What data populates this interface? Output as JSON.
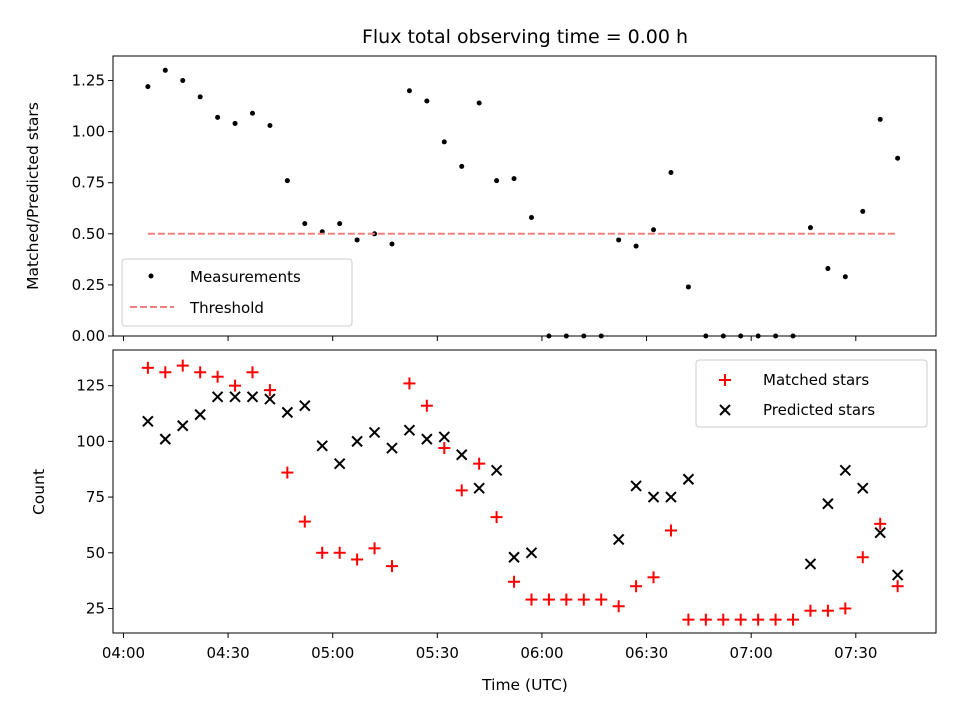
{
  "chart_data": [
    {
      "type": "scatter",
      "title": "Flux total observing time = 0.00 h",
      "xlabel": "",
      "ylabel": "Matched/Predicted stars",
      "ylim": [
        0,
        1.37
      ],
      "yticks": [
        0.0,
        0.25,
        0.5,
        0.75,
        1.0,
        1.25
      ],
      "ytick_labels": [
        "0.00",
        "0.25",
        "0.50",
        "0.75",
        "1.00",
        "1.25"
      ],
      "xlim": [
        "03:57",
        "07:53"
      ],
      "legend": "bottom-left",
      "series": [
        {
          "name": "Measurements",
          "kind": "dots",
          "color": "#000000",
          "points": [
            [
              "04:07",
              1.22
            ],
            [
              "04:12",
              1.3
            ],
            [
              "04:17",
              1.25
            ],
            [
              "04:22",
              1.17
            ],
            [
              "04:27",
              1.07
            ],
            [
              "04:32",
              1.04
            ],
            [
              "04:37",
              1.09
            ],
            [
              "04:42",
              1.03
            ],
            [
              "04:47",
              0.76
            ],
            [
              "04:52",
              0.55
            ],
            [
              "04:57",
              0.51
            ],
            [
              "05:02",
              0.55
            ],
            [
              "05:07",
              0.47
            ],
            [
              "05:12",
              0.5
            ],
            [
              "05:17",
              0.45
            ],
            [
              "05:22",
              1.2
            ],
            [
              "05:27",
              1.15
            ],
            [
              "05:32",
              0.95
            ],
            [
              "05:37",
              0.83
            ],
            [
              "05:42",
              1.14
            ],
            [
              "05:47",
              0.76
            ],
            [
              "05:52",
              0.77
            ],
            [
              "05:57",
              0.58
            ],
            [
              "06:02",
              0.0
            ],
            [
              "06:07",
              0.0
            ],
            [
              "06:12",
              0.0
            ],
            [
              "06:17",
              0.0
            ],
            [
              "06:22",
              0.47
            ],
            [
              "06:27",
              0.44
            ],
            [
              "06:32",
              0.52
            ],
            [
              "06:37",
              0.8
            ],
            [
              "06:42",
              0.24
            ],
            [
              "06:47",
              0.0
            ],
            [
              "06:52",
              0.0
            ],
            [
              "06:57",
              0.0
            ],
            [
              "07:02",
              0.0
            ],
            [
              "07:07",
              0.0
            ],
            [
              "07:12",
              0.0
            ],
            [
              "07:17",
              0.53
            ],
            [
              "07:22",
              0.33
            ],
            [
              "07:27",
              0.29
            ],
            [
              "07:32",
              0.61
            ],
            [
              "07:37",
              1.06
            ],
            [
              "07:42",
              0.87
            ]
          ]
        },
        {
          "name": "Threshold",
          "kind": "dashed-line",
          "color": "#f08080",
          "points": [
            [
              "04:07",
              0.5
            ],
            [
              "07:42",
              0.5
            ]
          ]
        }
      ]
    },
    {
      "type": "scatter",
      "title": "",
      "xlabel": "Time (UTC)",
      "ylabel": "Count",
      "ylim": [
        14,
        141
      ],
      "yticks": [
        25,
        50,
        75,
        100,
        125
      ],
      "ytick_labels": [
        "25",
        "50",
        "75",
        "100",
        "125"
      ],
      "xlim": [
        "03:57",
        "07:53"
      ],
      "xticks": [
        "04:00",
        "04:30",
        "05:00",
        "05:30",
        "06:00",
        "06:30",
        "07:00",
        "07:30"
      ],
      "legend": "top-right",
      "series": [
        {
          "name": "Matched stars",
          "kind": "plus",
          "color": "#ff0000",
          "points": [
            [
              "04:07",
              133
            ],
            [
              "04:12",
              131
            ],
            [
              "04:17",
              134
            ],
            [
              "04:22",
              131
            ],
            [
              "04:27",
              129
            ],
            [
              "04:32",
              125
            ],
            [
              "04:37",
              131
            ],
            [
              "04:42",
              123
            ],
            [
              "04:47",
              86
            ],
            [
              "04:52",
              64
            ],
            [
              "04:57",
              50
            ],
            [
              "05:02",
              50
            ],
            [
              "05:07",
              47
            ],
            [
              "05:12",
              52
            ],
            [
              "05:17",
              44
            ],
            [
              "05:22",
              126
            ],
            [
              "05:27",
              116
            ],
            [
              "05:32",
              97
            ],
            [
              "05:37",
              78
            ],
            [
              "05:42",
              90
            ],
            [
              "05:47",
              66
            ],
            [
              "05:52",
              37
            ],
            [
              "05:57",
              29
            ],
            [
              "06:02",
              29
            ],
            [
              "06:07",
              29
            ],
            [
              "06:12",
              29
            ],
            [
              "06:17",
              29
            ],
            [
              "06:22",
              26
            ],
            [
              "06:27",
              35
            ],
            [
              "06:32",
              39
            ],
            [
              "06:37",
              60
            ],
            [
              "06:42",
              20
            ],
            [
              "06:47",
              20
            ],
            [
              "06:52",
              20
            ],
            [
              "06:57",
              20
            ],
            [
              "07:02",
              20
            ],
            [
              "07:07",
              20
            ],
            [
              "07:12",
              20
            ],
            [
              "07:17",
              24
            ],
            [
              "07:22",
              24
            ],
            [
              "07:27",
              25
            ],
            [
              "07:32",
              48
            ],
            [
              "07:37",
              63
            ],
            [
              "07:42",
              35
            ]
          ]
        },
        {
          "name": "Predicted stars",
          "kind": "x",
          "color": "#000000",
          "points": [
            [
              "04:07",
              109
            ],
            [
              "04:12",
              101
            ],
            [
              "04:17",
              107
            ],
            [
              "04:22",
              112
            ],
            [
              "04:27",
              120
            ],
            [
              "04:32",
              120
            ],
            [
              "04:37",
              120
            ],
            [
              "04:42",
              119
            ],
            [
              "04:47",
              113
            ],
            [
              "04:52",
              116
            ],
            [
              "04:57",
              98
            ],
            [
              "05:02",
              90
            ],
            [
              "05:07",
              100
            ],
            [
              "05:12",
              104
            ],
            [
              "05:17",
              97
            ],
            [
              "05:22",
              105
            ],
            [
              "05:27",
              101
            ],
            [
              "05:32",
              102
            ],
            [
              "05:37",
              94
            ],
            [
              "05:42",
              79
            ],
            [
              "05:47",
              87
            ],
            [
              "05:52",
              48
            ],
            [
              "05:57",
              50
            ],
            [
              "06:22",
              56
            ],
            [
              "06:27",
              80
            ],
            [
              "06:32",
              75
            ],
            [
              "06:37",
              75
            ],
            [
              "06:42",
              83
            ],
            [
              "07:17",
              45
            ],
            [
              "07:22",
              72
            ],
            [
              "07:27",
              87
            ],
            [
              "07:32",
              79
            ],
            [
              "07:37",
              59
            ],
            [
              "07:42",
              40
            ]
          ]
        }
      ]
    }
  ]
}
